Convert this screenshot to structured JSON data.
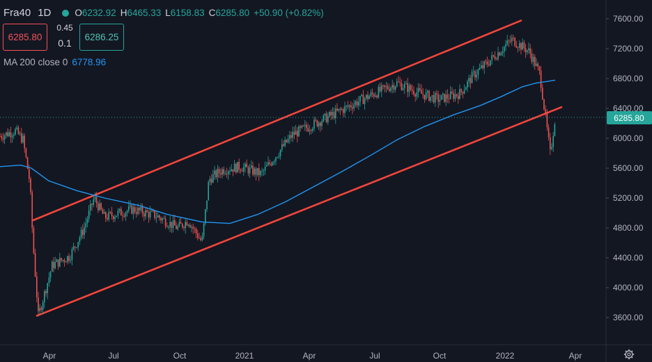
{
  "legend": {
    "symbol": "Fra40",
    "interval": "1D",
    "open_label": "O",
    "open": "6232.92",
    "high_label": "H",
    "high": "6465.33",
    "low_label": "L",
    "low": "6158.83",
    "close_label": "C",
    "close": "6285.80",
    "change": "+50.90 (+0.82%)"
  },
  "trade": {
    "sell_price": "6285.80",
    "spread": "0.45",
    "quantity": "0.1",
    "buy_price": "6286.25"
  },
  "indicator": {
    "label": "MA 200 close 0",
    "value": "6778.96"
  },
  "colors": {
    "background": "#131722",
    "up": "#26a69a",
    "down": "#ef5350",
    "ma": "#2196f3",
    "trend": "#f2463c",
    "axis_text": "#b2b5be"
  },
  "chart_data": {
    "type": "candlestick",
    "y_ticks": [
      "7600.00",
      "7200.00",
      "6800.00",
      "6400.00",
      "6000.00",
      "5600.00",
      "5200.00",
      "4800.00",
      "4400.00",
      "4000.00",
      "3600.00"
    ],
    "ylim": [
      3400,
      7800
    ],
    "x_ticks": [
      "Apr",
      "Jul",
      "Oct",
      "2021",
      "Apr",
      "Jul",
      "Oct",
      "2022",
      "Apr"
    ],
    "last_price": "6285.80",
    "series": [
      {
        "name": "MA 200 close 0",
        "values": [
          5620,
          5640,
          5600,
          5430,
          5300,
          5200,
          5100,
          4980,
          4880,
          4860,
          4980,
          5150,
          5350,
          5550,
          5760,
          5980,
          6160,
          6310,
          6440,
          6560,
          6690,
          6740,
          6760,
          6779
        ]
      },
      {
        "name": "price",
        "values": [
          6030,
          6100,
          5980,
          5400,
          4650,
          3620,
          4300,
          4420,
          4780,
          5200,
          4940,
          5050,
          4960,
          4800,
          4900,
          4610,
          5450,
          5580,
          5620,
          5520,
          6050,
          6280,
          6520,
          6740,
          6610,
          6520,
          6600,
          6850,
          7010,
          7190,
          7320,
          7160,
          6860,
          5780,
          6285
        ]
      }
    ],
    "trend_lines": [
      {
        "from": [
          -38,
          4900
        ],
        "to": [
          697,
          7580
        ]
      },
      {
        "from": [
          -38,
          3620
        ],
        "to": [
          760,
          6420
        ]
      }
    ]
  }
}
